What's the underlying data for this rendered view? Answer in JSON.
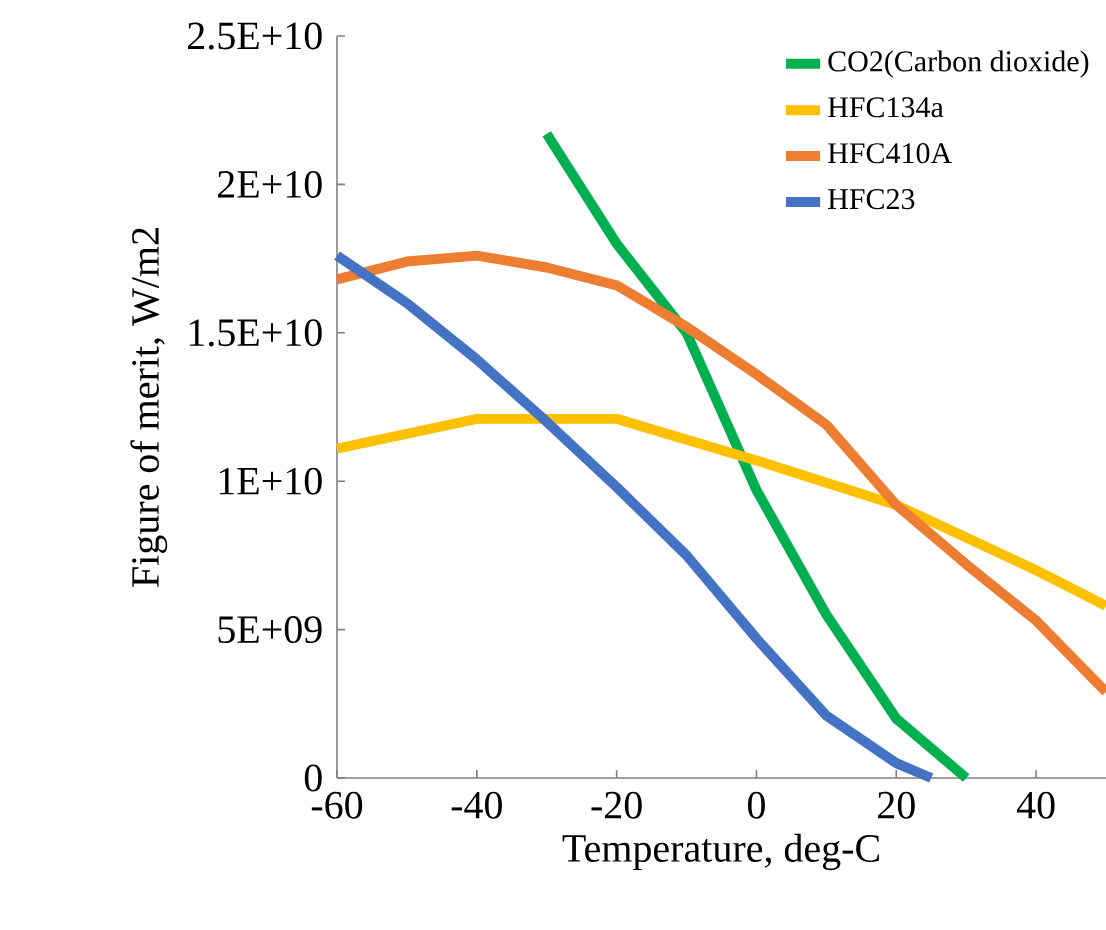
{
  "chart_data": {
    "type": "line",
    "xlabel": "Temperature, deg-C",
    "ylabel": "Figure of merit, W/m2",
    "xlim": [
      -60,
      50
    ],
    "xticks": [
      -60,
      -40,
      -20,
      0,
      20,
      40
    ],
    "ylim": [
      0,
      25000000000
    ],
    "yticks": [
      0,
      {
        "value": 5000000000,
        "label": "5E+09"
      },
      {
        "value": 10000000000,
        "label": "1E+10"
      },
      {
        "value": 15000000000,
        "label": "1.5E+10"
      },
      {
        "value": 20000000000,
        "label": "2E+10"
      },
      {
        "value": 25000000000,
        "label": "2.5E+10"
      }
    ],
    "grid": false,
    "legend": "top right",
    "marker": "none",
    "line_style": "solid",
    "series": [
      {
        "name": "CO2(Carbon dioxide)",
        "color": "#00b050",
        "x": [
          -30,
          -20,
          -10,
          0,
          10,
          20,
          30
        ],
        "values": [
          21700000000,
          18000000000,
          15000000000,
          9700000000,
          5500000000,
          2000000000,
          0
        ]
      },
      {
        "name": "HFC134a",
        "color": "#ffc000",
        "x": [
          -60,
          -40,
          -20,
          0,
          20,
          40,
          50
        ],
        "values": [
          11100000000,
          12100000000,
          12100000000,
          10700000000,
          9200000000,
          7000000000,
          5800000000
        ]
      },
      {
        "name": "HFC410A",
        "color": "#ed7d31",
        "x": [
          -60,
          -50,
          -40,
          -30,
          -20,
          -10,
          0,
          10,
          20,
          30,
          40,
          50
        ],
        "values": [
          16800000000,
          17400000000,
          17600000000,
          17200000000,
          16600000000,
          15200000000,
          13600000000,
          11900000000,
          9200000000,
          7200000000,
          5300000000,
          2900000000
        ]
      },
      {
        "name": "HFC23",
        "color": "#4472c4",
        "x": [
          -60,
          -50,
          -40,
          -30,
          -20,
          -10,
          0,
          10,
          20,
          25
        ],
        "values": [
          17600000000,
          16000000000,
          14100000000,
          12000000000,
          9800000000,
          7500000000,
          4700000000,
          2100000000,
          500000000,
          0
        ]
      }
    ]
  }
}
